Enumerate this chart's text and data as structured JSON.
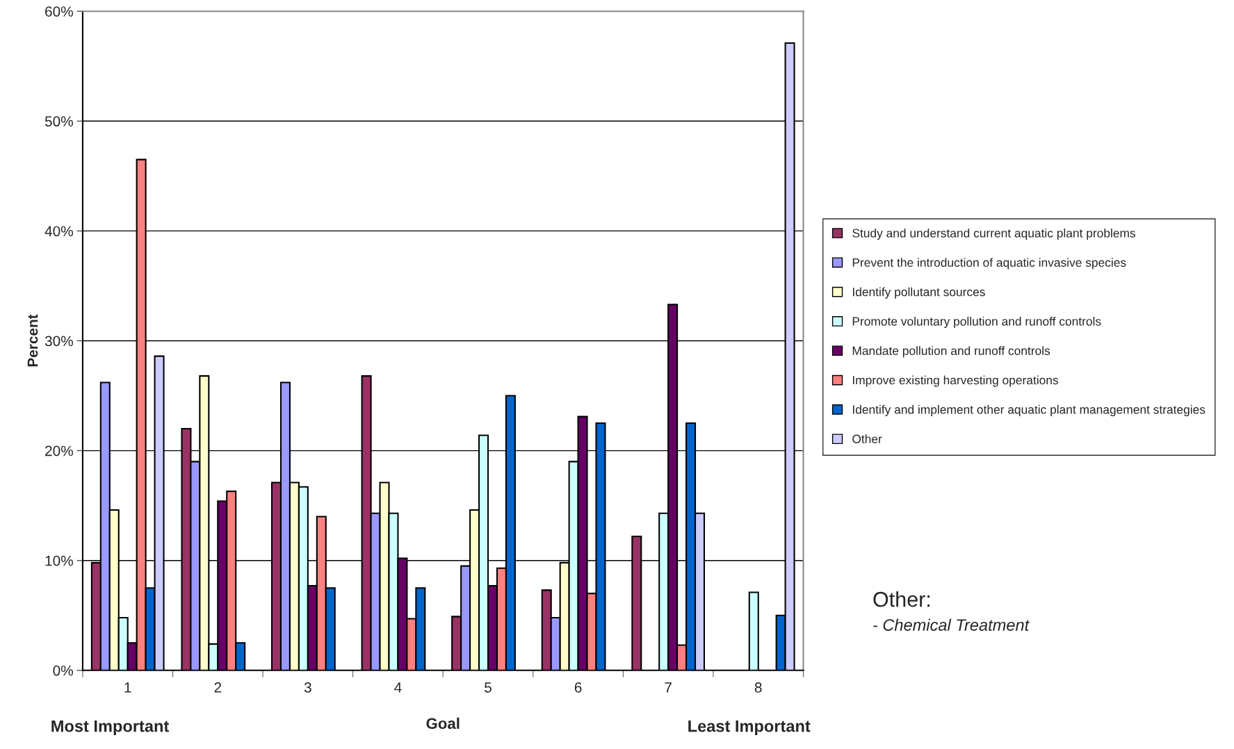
{
  "chart_data": {
    "type": "bar",
    "xlabel": "Goal",
    "ylabel": "Percent",
    "categories": [
      "1",
      "2",
      "3",
      "4",
      "5",
      "6",
      "7",
      "8"
    ],
    "series": [
      {
        "name": "Study and understand current aquatic plant problems",
        "color": "#993366",
        "values": [
          9.8,
          22.0,
          17.1,
          26.8,
          4.9,
          7.3,
          12.2,
          null
        ]
      },
      {
        "name": "Prevent the introduction of aquatic invasive species",
        "color": "#9999ff",
        "values": [
          26.2,
          19.0,
          26.2,
          14.3,
          9.5,
          4.8,
          null,
          null
        ]
      },
      {
        "name": "Identify pollutant sources",
        "color": "#ffffcc",
        "values": [
          14.6,
          26.8,
          17.1,
          17.1,
          14.6,
          9.8,
          null,
          null
        ]
      },
      {
        "name": "Promote voluntary pollution and runoff controls",
        "color": "#ccffff",
        "values": [
          4.8,
          2.4,
          16.7,
          14.3,
          21.4,
          19.0,
          14.3,
          7.1
        ]
      },
      {
        "name": "Mandate pollution and runoff controls",
        "color": "#660066",
        "values": [
          2.5,
          15.4,
          7.7,
          10.2,
          7.7,
          23.1,
          33.3,
          null
        ]
      },
      {
        "name": "Improve existing harvesting operations",
        "color": "#ff8080",
        "values": [
          46.5,
          16.3,
          14.0,
          4.7,
          9.3,
          7.0,
          2.3,
          null
        ]
      },
      {
        "name": "Identify and implement other aquatic plant management strategies",
        "color": "#0066cc",
        "values": [
          7.5,
          2.5,
          7.5,
          7.5,
          25.0,
          22.5,
          22.5,
          5.0
        ]
      },
      {
        "name": "Other",
        "color": "#ccccff",
        "values": [
          28.6,
          null,
          null,
          null,
          null,
          null,
          14.3,
          57.1
        ]
      }
    ],
    "ylim": [
      0,
      60
    ],
    "yticks": [
      {
        "value": 0,
        "label": "0%"
      },
      {
        "value": 10,
        "label": "10%"
      },
      {
        "value": 20,
        "label": "20%"
      },
      {
        "value": 30,
        "label": "30%"
      },
      {
        "value": 40,
        "label": "40%"
      },
      {
        "value": 50,
        "label": "50%"
      },
      {
        "value": 60,
        "label": "60%"
      }
    ],
    "grid": "y",
    "legend": "right",
    "annotations": [
      "Most Important",
      "Least Important",
      "Other:",
      "- Chemical Treatment"
    ]
  }
}
